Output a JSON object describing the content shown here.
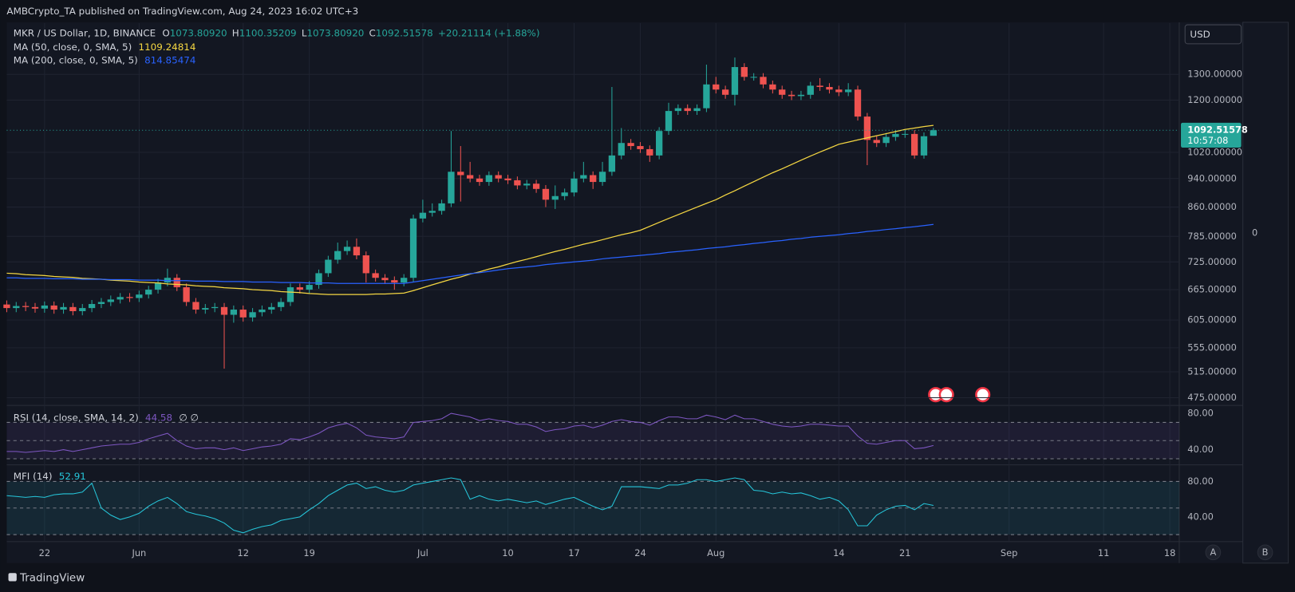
{
  "header": {
    "text": "AMBCrypto_TA published on TradingView.com, Aug 24, 2023 16:02 UTC+3"
  },
  "footer": {
    "brand": "TradingView"
  },
  "ui": {
    "currency": "USD",
    "right_zero": "0",
    "buttons": [
      "A",
      "B"
    ]
  },
  "chart_data": [
    {
      "type": "candlestick",
      "title": "MKR / US Dollar, 1D, BINANCE",
      "ohlc": [
        {
          "key": "O",
          "value": "1073.80920"
        },
        {
          "key": "H",
          "value": "1100.35209"
        },
        {
          "key": "L",
          "value": "1073.80920"
        },
        {
          "key": "C",
          "value": "1092.51578"
        }
      ],
      "change": "+20.21114 (+1.88%)",
      "x": [
        "May 18",
        "May 19",
        "May 20",
        "May 21",
        "May 22",
        "May 23",
        "May 24",
        "May 25",
        "May 26",
        "May 27",
        "May 28",
        "May 29",
        "May 30",
        "May 31",
        "Jun 1",
        "Jun 2",
        "Jun 3",
        "Jun 4",
        "Jun 5",
        "Jun 6",
        "Jun 7",
        "Jun 8",
        "Jun 9",
        "Jun 10",
        "Jun 11",
        "Jun 12",
        "Jun 13",
        "Jun 14",
        "Jun 15",
        "Jun 16",
        "Jun 17",
        "Jun 18",
        "Jun 19",
        "Jun 20",
        "Jun 21",
        "Jun 22",
        "Jun 23",
        "Jun 24",
        "Jun 25",
        "Jun 26",
        "Jun 27",
        "Jun 28",
        "Jun 29",
        "Jun 30",
        "Jul 1",
        "Jul 2",
        "Jul 3",
        "Jul 4",
        "Jul 5",
        "Jul 6",
        "Jul 7",
        "Jul 8",
        "Jul 9",
        "Jul 10",
        "Jul 11",
        "Jul 12",
        "Jul 13",
        "Jul 14",
        "Jul 15",
        "Jul 16",
        "Jul 17",
        "Jul 18",
        "Jul 19",
        "Jul 20",
        "Jul 21",
        "Jul 22",
        "Jul 23",
        "Jul 24",
        "Jul 25",
        "Jul 26",
        "Jul 27",
        "Jul 28",
        "Jul 29",
        "Jul 30",
        "Jul 31",
        "Aug 1",
        "Aug 2",
        "Aug 3",
        "Aug 4",
        "Aug 5",
        "Aug 6",
        "Aug 7",
        "Aug 8",
        "Aug 9",
        "Aug 10",
        "Aug 11",
        "Aug 12",
        "Aug 13",
        "Aug 14",
        "Aug 15",
        "Aug 16",
        "Aug 17",
        "Aug 18",
        "Aug 19",
        "Aug 20",
        "Aug 21",
        "Aug 22",
        "Aug 23",
        "Aug 24"
      ],
      "open": [
        635,
        628,
        632,
        630,
        627,
        633,
        625,
        630,
        622,
        628,
        636,
        640,
        645,
        650,
        648,
        655,
        665,
        680,
        690,
        670,
        640,
        625,
        628,
        630,
        615,
        625,
        610,
        620,
        625,
        630,
        640,
        670,
        665,
        675,
        700,
        730,
        750,
        760,
        740,
        700,
        690,
        685,
        680,
        690,
        830,
        845,
        850,
        870,
        960,
        950,
        940,
        930,
        950,
        940,
        935,
        920,
        925,
        910,
        880,
        890,
        900,
        940,
        950,
        930,
        960,
        1010,
        1050,
        1040,
        1030,
        1010,
        1090,
        1160,
        1170,
        1160,
        1170,
        1260,
        1240,
        1220,
        1330,
        1290,
        1290,
        1260,
        1240,
        1220,
        1215,
        1220,
        1255,
        1250,
        1240,
        1230,
        1240,
        1140,
        1060,
        1050,
        1070,
        1080,
        1080,
        1010,
        1073.8092
      ],
      "high": [
        643,
        640,
        640,
        638,
        641,
        641,
        638,
        638,
        636,
        644,
        648,
        653,
        658,
        658,
        663,
        673,
        688,
        710,
        698,
        678,
        648,
        636,
        638,
        638,
        633,
        633,
        628,
        633,
        638,
        648,
        678,
        678,
        683,
        708,
        739,
        770,
        775,
        780,
        749,
        708,
        698,
        693,
        698,
        840,
        880,
        870,
        880,
        1090,
        1040,
        990,
        951,
        961,
        961,
        951,
        946,
        936,
        936,
        921,
        920,
        911,
        960,
        990,
        961,
        990,
        1250,
        1100,
        1063,
        1053,
        1042,
        1103,
        1190,
        1184,
        1184,
        1184,
        1340,
        1290,
        1255,
        1370,
        1346,
        1305,
        1305,
        1275,
        1255,
        1235,
        1235,
        1270,
        1285,
        1265,
        1255,
        1265,
        1255,
        1153,
        1073,
        1083,
        1093,
        1093,
        1093,
        1085,
        1100.35209
      ],
      "low": [
        620,
        620,
        622,
        619,
        619,
        617,
        617,
        614,
        614,
        620,
        628,
        632,
        637,
        640,
        640,
        647,
        657,
        672,
        662,
        632,
        617,
        617,
        620,
        520,
        600,
        602,
        602,
        612,
        617,
        622,
        632,
        657,
        657,
        667,
        692,
        721,
        741,
        731,
        680,
        682,
        677,
        665,
        672,
        682,
        820,
        835,
        840,
        860,
        875,
        929,
        919,
        919,
        929,
        924,
        909,
        909,
        899,
        860,
        855,
        879,
        889,
        929,
        910,
        919,
        948,
        998,
        1028,
        1018,
        990,
        998,
        1077,
        1146,
        1146,
        1146,
        1156,
        1225,
        1205,
        1180,
        1275,
        1275,
        1245,
        1225,
        1205,
        1200,
        1200,
        1205,
        1235,
        1225,
        1215,
        1215,
        1126,
        980,
        1037,
        1037,
        1057,
        1067,
        1000,
        1000,
        1073.8092
      ],
      "close": [
        628,
        632,
        630,
        627,
        633,
        625,
        630,
        622,
        628,
        636,
        640,
        645,
        650,
        648,
        655,
        665,
        680,
        690,
        670,
        640,
        625,
        628,
        630,
        615,
        625,
        610,
        620,
        625,
        630,
        640,
        670,
        665,
        675,
        700,
        730,
        750,
        760,
        740,
        700,
        690,
        685,
        680,
        690,
        830,
        845,
        850,
        870,
        960,
        950,
        940,
        930,
        950,
        940,
        935,
        920,
        925,
        910,
        880,
        890,
        900,
        940,
        950,
        930,
        960,
        1010,
        1050,
        1040,
        1030,
        1010,
        1090,
        1160,
        1170,
        1160,
        1170,
        1260,
        1240,
        1220,
        1330,
        1290,
        1290,
        1260,
        1240,
        1220,
        1215,
        1220,
        1255,
        1250,
        1240,
        1230,
        1240,
        1140,
        1060,
        1050,
        1070,
        1080,
        1080,
        1010,
        1072.30464,
        1092.51578
      ],
      "up_color": "#26a69a",
      "down_color": "#ef5350",
      "series": [
        {
          "name": "MA (50, close, 0, SMA, 5)",
          "color": "#f5d742",
          "last_label": "1109.24814",
          "values": [
            700,
            699,
            697,
            696,
            695,
            693,
            692,
            691,
            689,
            688,
            687,
            685,
            684,
            683,
            681,
            680,
            679,
            677,
            676,
            675,
            673,
            672,
            671,
            669,
            668,
            667,
            665,
            664,
            663,
            661,
            660,
            659,
            657,
            656,
            655,
            655,
            655,
            655,
            655,
            656,
            656,
            657,
            658,
            663,
            669,
            675,
            681,
            687,
            692,
            698,
            703,
            709,
            714,
            720,
            726,
            731,
            737,
            743,
            749,
            754,
            760,
            766,
            771,
            777,
            783,
            789,
            794,
            800,
            810,
            820,
            830,
            840,
            850,
            860,
            870,
            880,
            893,
            905,
            918,
            931,
            944,
            957,
            969,
            982,
            995,
            1008,
            1021,
            1033,
            1046,
            1053,
            1060,
            1067,
            1074,
            1081,
            1088,
            1095,
            1100,
            1105,
            1109.24814
          ]
        },
        {
          "name": "MA (200, close, 0, SMA, 5)",
          "color": "#2962ff",
          "last_label": "814.85474",
          "values": [
            690,
            690,
            689,
            689,
            689,
            688,
            688,
            688,
            687,
            687,
            687,
            686,
            686,
            686,
            685,
            685,
            685,
            684,
            684,
            684,
            683,
            683,
            683,
            682,
            682,
            682,
            681,
            681,
            681,
            680,
            680,
            680,
            679,
            679,
            679,
            678,
            678,
            678,
            678,
            678,
            678,
            678,
            678,
            681,
            684,
            687,
            690,
            693,
            696,
            699,
            701,
            704,
            707,
            710,
            712,
            714,
            716,
            719,
            721,
            723,
            725,
            727,
            729,
            732,
            734,
            736,
            738,
            740,
            742,
            744,
            747,
            749,
            751,
            753,
            756,
            758,
            760,
            763,
            765,
            768,
            770,
            773,
            775,
            778,
            780,
            783,
            785,
            787,
            789,
            792,
            794,
            797,
            799,
            802,
            804,
            807,
            809,
            812,
            814.85474
          ]
        }
      ],
      "last_price": {
        "label": "1092.51578",
        "countdown": "10:57:08"
      },
      "ylim": [
        465,
        1525
      ],
      "log_scale": true,
      "yticks": [
        {
          "value": 1300,
          "label": "1300.00000"
        },
        {
          "value": 1200,
          "label": "1200.00000"
        },
        {
          "value": 1020,
          "label": "1020.00000"
        },
        {
          "value": 940,
          "label": "940.00000"
        },
        {
          "value": 860,
          "label": "860.00000"
        },
        {
          "value": 785,
          "label": "785.00000"
        },
        {
          "value": 725,
          "label": "725.00000"
        },
        {
          "value": 665,
          "label": "665.00000"
        },
        {
          "value": 605,
          "label": "605.00000"
        },
        {
          "value": 555,
          "label": "555.00000"
        },
        {
          "value": 515,
          "label": "515.00000"
        },
        {
          "value": 475,
          "label": "475.00000"
        }
      ],
      "xlim": [
        "May 18",
        "Sep 19"
      ],
      "xticks": [
        {
          "value": "May 22",
          "label": "22"
        },
        {
          "value": "Jun 1",
          "label": "Jun"
        },
        {
          "value": "Jun 12",
          "label": "12"
        },
        {
          "value": "Jun 19",
          "label": "19"
        },
        {
          "value": "Jul 1",
          "label": "Jul"
        },
        {
          "value": "Jul 10",
          "label": "10"
        },
        {
          "value": "Jul 17",
          "label": "17"
        },
        {
          "value": "Jul 24",
          "label": "24"
        },
        {
          "value": "Aug 1",
          "label": "Aug"
        },
        {
          "value": "Aug 14",
          "label": "14"
        },
        {
          "value": "Aug 21",
          "label": "21"
        },
        {
          "value": "Sep 1",
          "label": "Sep"
        },
        {
          "value": "Sep 11",
          "label": "11"
        },
        {
          "value": "Sep 18",
          "label": "18"
        }
      ],
      "grid": true
    },
    {
      "type": "line",
      "title": "RSI (14, close, SMA, 14, 2)",
      "last_label": "44.58",
      "note": "∅ ∅",
      "color": "#7e57c2",
      "values": [
        38,
        38,
        37,
        38,
        39,
        38,
        40,
        38,
        40,
        42,
        44,
        45,
        46,
        46,
        48,
        52,
        55,
        58,
        50,
        44,
        41,
        42,
        42,
        40,
        42,
        39,
        41,
        43,
        44,
        46,
        52,
        51,
        54,
        58,
        64,
        67,
        69,
        64,
        56,
        54,
        53,
        52,
        54,
        70,
        71,
        72,
        74,
        80,
        78,
        76,
        72,
        74,
        72,
        71,
        68,
        68,
        65,
        60,
        62,
        63,
        66,
        67,
        64,
        67,
        71,
        73,
        71,
        70,
        67,
        72,
        76,
        76,
        74,
        74,
        78,
        76,
        73,
        78,
        74,
        74,
        71,
        68,
        66,
        65,
        66,
        68,
        68,
        67,
        66,
        66,
        55,
        47,
        46,
        48,
        50,
        50,
        41,
        42,
        44.58
      ],
      "ylim": [
        26,
        86
      ],
      "yticks": [
        {
          "value": 80,
          "label": "80.00"
        },
        {
          "value": 40,
          "label": "40.00"
        }
      ],
      "levels": [
        30,
        50,
        70
      ]
    },
    {
      "type": "line",
      "title": "MFI (14)",
      "last_label": "52.91",
      "color": "#26c6da",
      "values": [
        64,
        63,
        62,
        63,
        62,
        65,
        66,
        66,
        68,
        78,
        50,
        42,
        37,
        40,
        44,
        52,
        58,
        62,
        55,
        46,
        43,
        41,
        38,
        33,
        25,
        22,
        26,
        29,
        31,
        36,
        38,
        40,
        48,
        55,
        64,
        70,
        76,
        78,
        72,
        74,
        70,
        68,
        70,
        76,
        78,
        80,
        82,
        84,
        82,
        60,
        64,
        60,
        58,
        60,
        58,
        56,
        58,
        54,
        57,
        60,
        62,
        57,
        52,
        48,
        52,
        74,
        74,
        74,
        73,
        72,
        76,
        76,
        78,
        82,
        82,
        80,
        82,
        84,
        82,
        70,
        69,
        66,
        68,
        66,
        67,
        64,
        60,
        62,
        58,
        48,
        30,
        30,
        42,
        48,
        52,
        53,
        48,
        55,
        52.91
      ],
      "ylim": [
        13,
        95
      ],
      "yticks": [
        {
          "value": 80,
          "label": "80.00"
        },
        {
          "value": 40,
          "label": "40.00"
        }
      ],
      "levels": [
        20,
        50,
        80
      ]
    }
  ]
}
